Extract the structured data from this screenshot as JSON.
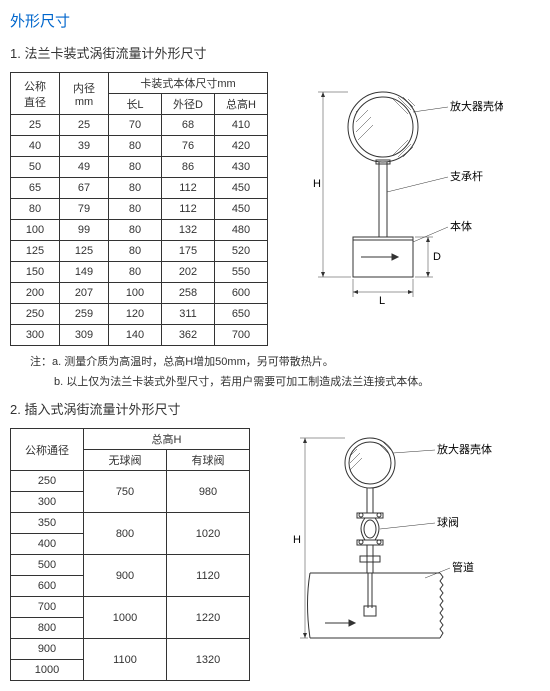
{
  "title": "外形尺寸",
  "section1": {
    "heading": "1. 法兰卡装式涡街流量计外形尺寸",
    "table": {
      "col1_header": "公称\n直径",
      "col2_header": "内径\nmm",
      "col_group_header": "卡装式本体尺寸mm",
      "col3_header": "长L",
      "col4_header": "外径D",
      "col5_header": "总高H",
      "rows": [
        [
          "25",
          "25",
          "70",
          "68",
          "410"
        ],
        [
          "40",
          "39",
          "80",
          "76",
          "420"
        ],
        [
          "50",
          "49",
          "80",
          "86",
          "430"
        ],
        [
          "65",
          "67",
          "80",
          "112",
          "450"
        ],
        [
          "80",
          "79",
          "80",
          "112",
          "450"
        ],
        [
          "100",
          "99",
          "80",
          "132",
          "480"
        ],
        [
          "125",
          "125",
          "80",
          "175",
          "520"
        ],
        [
          "150",
          "149",
          "80",
          "202",
          "550"
        ],
        [
          "200",
          "207",
          "100",
          "258",
          "600"
        ],
        [
          "250",
          "259",
          "120",
          "311",
          "650"
        ],
        [
          "300",
          "309",
          "140",
          "362",
          "700"
        ]
      ]
    },
    "notes": {
      "prefix": "注：",
      "note_a": "a. 测量介质为高温时，总高H增加50mm，另可带散热片。",
      "note_b": "b. 以上仅为法兰卡装式外型尺寸，若用户需要可加工制造成法兰连接式本体。"
    },
    "diagram": {
      "label_amp": "放大器壳体",
      "label_support": "支承杆",
      "label_body": "本体",
      "dim_H": "H",
      "dim_D": "D",
      "dim_L": "L"
    }
  },
  "section2": {
    "heading": "2. 插入式涡街流量计外形尺寸",
    "table": {
      "col1_header": "公称通径",
      "col_group_header": "总高H",
      "col2_header": "无球阀",
      "col3_header": "有球阀",
      "rows": [
        {
          "dn": "250",
          "h1": "750",
          "h2": "980",
          "span": 2
        },
        {
          "dn": "300"
        },
        {
          "dn": "350",
          "h1": "800",
          "h2": "1020",
          "span": 2
        },
        {
          "dn": "400"
        },
        {
          "dn": "500",
          "h1": "900",
          "h2": "1120",
          "span": 2
        },
        {
          "dn": "600"
        },
        {
          "dn": "700",
          "h1": "1000",
          "h2": "1220",
          "span": 2
        },
        {
          "dn": "800"
        },
        {
          "dn": "900",
          "h1": "1100",
          "h2": "1320",
          "span": 2
        },
        {
          "dn": "1000"
        }
      ]
    },
    "diagram": {
      "label_amp": "放大器壳体",
      "label_valve": "球阀",
      "label_pipe": "管道",
      "dim_H": "H"
    }
  },
  "colors": {
    "title": "#0066cc",
    "border": "#333333",
    "line": "#333333"
  }
}
